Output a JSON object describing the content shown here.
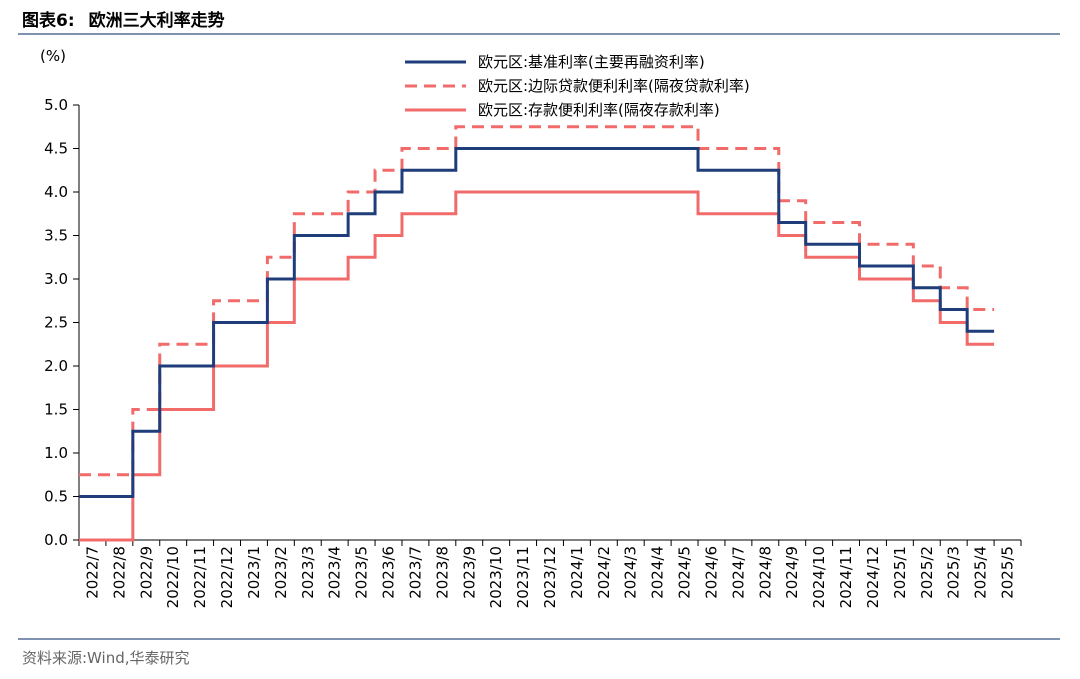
{
  "header": {
    "figure_label": "图表6:",
    "title": "欧洲三大利率走势"
  },
  "source": "资料来源:Wind,华泰研究",
  "colors": {
    "main_refi": "#1f3d7a",
    "marginal_lending": "#f26b6b",
    "deposit": "#f26b6b",
    "rule": "#7f93b0",
    "axis": "#000000"
  },
  "chart_data": {
    "type": "line",
    "step": true,
    "title": "",
    "xlabel": "",
    "ylabel": "(%)",
    "ylim": [
      0.0,
      5.0
    ],
    "yticks": [
      "0.0",
      "0.5",
      "1.0",
      "1.5",
      "2.0",
      "2.5",
      "3.0",
      "3.5",
      "4.0",
      "4.5",
      "5.0"
    ],
    "grid": false,
    "legend_position": "top-center",
    "categories": [
      "2022/7",
      "2022/8",
      "2022/9",
      "2022/10",
      "2022/11",
      "2022/12",
      "2023/1",
      "2023/2",
      "2023/3",
      "2023/4",
      "2023/5",
      "2023/6",
      "2023/7",
      "2023/8",
      "2023/9",
      "2023/10",
      "2023/11",
      "2023/12",
      "2024/1",
      "2024/2",
      "2024/3",
      "2024/4",
      "2024/5",
      "2024/6",
      "2024/7",
      "2024/8",
      "2024/9",
      "2024/10",
      "2024/11",
      "2024/12",
      "2025/1",
      "2025/2",
      "2025/3",
      "2025/4",
      "2025/5"
    ],
    "series": [
      {
        "name": "欧元区:基准利率(主要再融资利率)",
        "style": "solid",
        "color_key": "main_refi",
        "steps": [
          {
            "from": "2022/7",
            "value": 0.5
          },
          {
            "from": "2022/9",
            "value": 1.25
          },
          {
            "from": "2022/10",
            "value": 2.0
          },
          {
            "from": "2022/12",
            "value": 2.5
          },
          {
            "from": "2023/2",
            "value": 3.0
          },
          {
            "from": "2023/3",
            "value": 3.5
          },
          {
            "from": "2023/5",
            "value": 3.75
          },
          {
            "from": "2023/6",
            "value": 4.0
          },
          {
            "from": "2023/7",
            "value": 4.25
          },
          {
            "from": "2023/9",
            "value": 4.5
          },
          {
            "from": "2024/6",
            "value": 4.25
          },
          {
            "from": "2024/9",
            "value": 3.65
          },
          {
            "from": "2024/10",
            "value": 3.4
          },
          {
            "from": "2024/12",
            "value": 3.15
          },
          {
            "from": "2025/2",
            "value": 2.9
          },
          {
            "from": "2025/3",
            "value": 2.65
          },
          {
            "from": "2025/4",
            "value": 2.4
          }
        ],
        "end": "2025/5"
      },
      {
        "name": "欧元区:边际贷款便利利率(隔夜贷款利率)",
        "style": "dashed",
        "color_key": "marginal_lending",
        "steps": [
          {
            "from": "2022/7",
            "value": 0.75
          },
          {
            "from": "2022/9",
            "value": 1.5
          },
          {
            "from": "2022/10",
            "value": 2.25
          },
          {
            "from": "2022/12",
            "value": 2.75
          },
          {
            "from": "2023/2",
            "value": 3.25
          },
          {
            "from": "2023/3",
            "value": 3.75
          },
          {
            "from": "2023/5",
            "value": 4.0
          },
          {
            "from": "2023/6",
            "value": 4.25
          },
          {
            "from": "2023/7",
            "value": 4.5
          },
          {
            "from": "2023/9",
            "value": 4.75
          },
          {
            "from": "2024/6",
            "value": 4.5
          },
          {
            "from": "2024/9",
            "value": 3.9
          },
          {
            "from": "2024/10",
            "value": 3.65
          },
          {
            "from": "2024/12",
            "value": 3.4
          },
          {
            "from": "2025/2",
            "value": 3.15
          },
          {
            "from": "2025/3",
            "value": 2.9
          },
          {
            "from": "2025/4",
            "value": 2.65
          }
        ],
        "end": "2025/5"
      },
      {
        "name": "欧元区:存款便利利率(隔夜存款利率)",
        "style": "solid",
        "color_key": "deposit",
        "steps": [
          {
            "from": "2022/7",
            "value": 0.0
          },
          {
            "from": "2022/9",
            "value": 0.75
          },
          {
            "from": "2022/10",
            "value": 1.5
          },
          {
            "from": "2022/12",
            "value": 2.0
          },
          {
            "from": "2023/2",
            "value": 2.5
          },
          {
            "from": "2023/3",
            "value": 3.0
          },
          {
            "from": "2023/5",
            "value": 3.25
          },
          {
            "from": "2023/6",
            "value": 3.5
          },
          {
            "from": "2023/7",
            "value": 3.75
          },
          {
            "from": "2023/9",
            "value": 4.0
          },
          {
            "from": "2024/6",
            "value": 3.75
          },
          {
            "from": "2024/9",
            "value": 3.5
          },
          {
            "from": "2024/10",
            "value": 3.25
          },
          {
            "from": "2024/12",
            "value": 3.0
          },
          {
            "from": "2025/2",
            "value": 2.75
          },
          {
            "from": "2025/3",
            "value": 2.5
          },
          {
            "from": "2025/4",
            "value": 2.25
          }
        ],
        "end": "2025/5"
      }
    ]
  }
}
